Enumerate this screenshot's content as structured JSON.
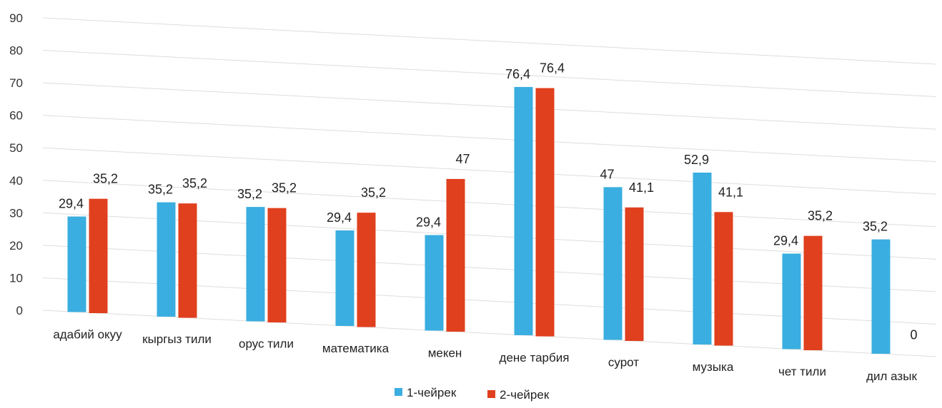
{
  "chart_data": {
    "type": "bar",
    "title": "",
    "xlabel": "",
    "ylabel": "",
    "ylim": [
      0,
      90
    ],
    "yticks": [
      0,
      10,
      20,
      30,
      40,
      50,
      60,
      70,
      80,
      90
    ],
    "grid": true,
    "legend_position": "bottom",
    "categories": [
      "адабий окуу",
      "кыргыз тили",
      "орус тили",
      "математика",
      "мекен",
      "дене тарбия",
      "сурот",
      "музыка",
      "чет тили",
      "дил азык"
    ],
    "series": [
      {
        "name": "1-чейрек",
        "color": "#3aaee0",
        "values": [
          29.4,
          35.2,
          35.2,
          29.4,
          29.4,
          76.4,
          47,
          52.9,
          29.4,
          35.2
        ],
        "labels": [
          "29,4",
          "35,2",
          "35,2",
          "29,4",
          "29,4",
          "76,4",
          "47",
          "52,9",
          "29,4",
          "35,2"
        ]
      },
      {
        "name": "2-чейрек",
        "color": "#e0401e",
        "values": [
          35.2,
          35.2,
          35.2,
          35.2,
          47,
          76.4,
          41.1,
          41.1,
          35.2,
          0
        ],
        "labels": [
          "35,2",
          "35,2",
          "35,2",
          "35,2",
          "47",
          "76,4",
          "41,1",
          "41,1",
          "35,2",
          "0"
        ]
      }
    ]
  }
}
